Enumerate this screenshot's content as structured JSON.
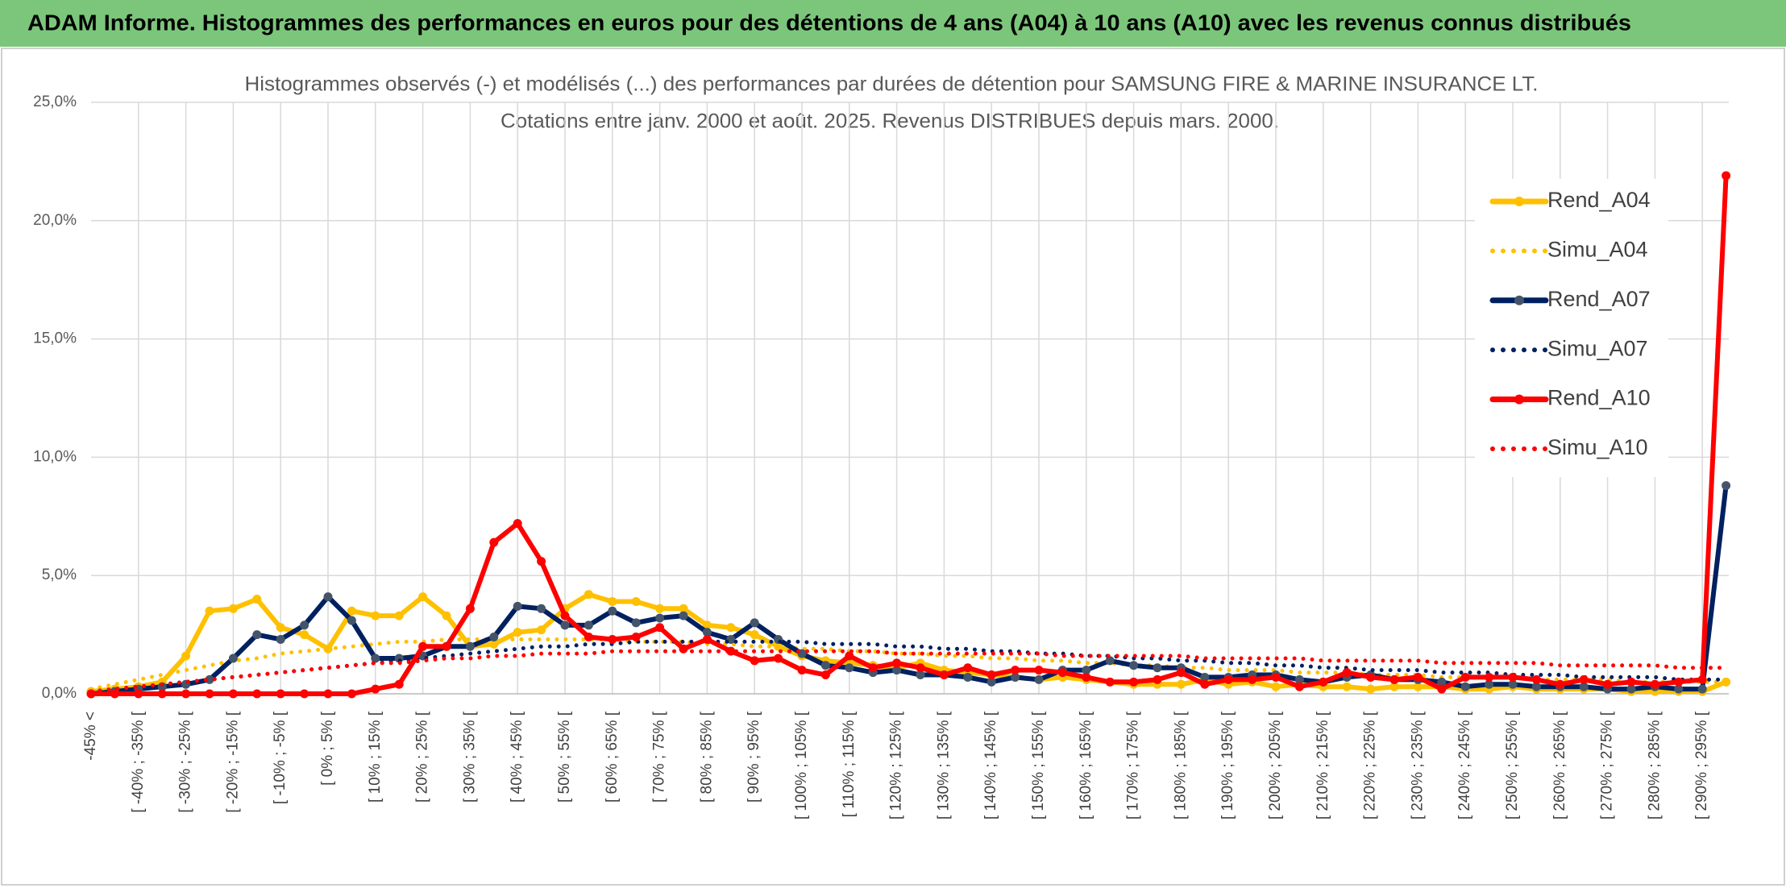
{
  "header": {
    "title": "ADAM Informe. Histogrammes des performances en euros pour des détentions de 4 ans (A04) à 10 ans (A10) avec les revenus connus distribués"
  },
  "chart_data": {
    "type": "line",
    "title": "Histogrammes observés (-) et modélisés (...) des performances par durées de détention pour SAMSUNG FIRE & MARINE INSURANCE LT.",
    "subtitle": "Cotations entre janv. 2000 et août. 2025. Revenus DISTRIBUES depuis mars. 2000.",
    "categories": [
      "-45% <",
      null,
      "[ -40% ; -35% [",
      null,
      "[ -30% ; -25% [",
      null,
      "[ -20% ; -15% [",
      null,
      "[ -10% ; -5% [",
      null,
      "[ 0% ; 5% [",
      null,
      "[ 10% ; 15% [",
      null,
      "[ 20% ; 25% [",
      null,
      "[ 30% ; 35% [",
      null,
      "[ 40% ; 45% [",
      null,
      "[ 50% ; 55% [",
      null,
      "[ 60% ; 65% [",
      null,
      "[ 70% ; 75% [",
      null,
      "[ 80% ; 85% [",
      null,
      "[ 90% ; 95% [",
      null,
      "[ 100% ; 105% [",
      null,
      "[ 110% ; 115% [",
      null,
      "[ 120% ; 125% [",
      null,
      "[ 130% ; 135% [",
      null,
      "[ 140% ; 145% [",
      null,
      "[ 150% ; 155% [",
      null,
      "[ 160% ; 165% [",
      null,
      "[ 170% ; 175% [",
      null,
      "[ 180% ; 185% [",
      null,
      "[ 190% ; 195% [",
      null,
      "[ 200% ; 205% [",
      null,
      "[ 210% ; 215% [",
      null,
      "[ 220% ; 225% [",
      null,
      "[ 230% ; 235% [",
      null,
      "[ 240% ; 245% [",
      null,
      "[ 250% ; 255% [",
      null,
      "[ 260% ; 265% [",
      null,
      "[ 270% ; 275% [",
      null,
      "[ 280% ; 285% [",
      null,
      "[ 290% ; 295% [",
      null
    ],
    "ylim": [
      0,
      25
    ],
    "yticks": [
      {
        "value": 0,
        "label": "0,0%"
      },
      {
        "value": 5,
        "label": "5,0%"
      },
      {
        "value": 10,
        "label": "10,0%"
      },
      {
        "value": 15,
        "label": "15,0%"
      },
      {
        "value": 20,
        "label": "20,0%"
      },
      {
        "value": 25,
        "label": "25,0%"
      }
    ],
    "grid": true,
    "legend": "right",
    "series": [
      {
        "name": "Rend_A04",
        "color": "#ffc000",
        "marker_color": "#ffc000",
        "line_style": "solid",
        "values": [
          0.1,
          0.2,
          0.3,
          0.5,
          1.6,
          3.5,
          3.6,
          4.0,
          2.8,
          2.5,
          1.9,
          3.5,
          3.3,
          3.3,
          4.1,
          3.3,
          2.0,
          2.1,
          2.6,
          2.7,
          3.6,
          4.2,
          3.9,
          3.9,
          3.6,
          3.6,
          2.9,
          2.8,
          2.5,
          2.0,
          1.6,
          1.4,
          1.3,
          1.2,
          1.1,
          1.3,
          1.0,
          0.9,
          0.8,
          0.7,
          0.6,
          0.7,
          0.6,
          0.5,
          0.4,
          0.4,
          0.4,
          0.6,
          0.4,
          0.5,
          0.3,
          0.4,
          0.3,
          0.3,
          0.2,
          0.3,
          0.3,
          0.3,
          0.2,
          0.2,
          0.3,
          0.2,
          0.2,
          0.2,
          0.2,
          0.1,
          0.1,
          0.1,
          0.1,
          0.5
        ]
      },
      {
        "name": "Simu_A04",
        "color": "#ffc000",
        "line_style": "dotted",
        "values": [
          0.2,
          0.4,
          0.6,
          0.8,
          1.0,
          1.2,
          1.4,
          1.5,
          1.7,
          1.8,
          1.9,
          2.0,
          2.1,
          2.2,
          2.2,
          2.3,
          2.3,
          2.3,
          2.3,
          2.3,
          2.3,
          2.3,
          2.3,
          2.2,
          2.2,
          2.2,
          2.1,
          2.1,
          2.0,
          2.0,
          1.9,
          1.9,
          1.8,
          1.8,
          1.7,
          1.7,
          1.6,
          1.6,
          1.5,
          1.5,
          1.4,
          1.4,
          1.3,
          1.3,
          1.2,
          1.2,
          1.1,
          1.1,
          1.0,
          1.0,
          1.0,
          0.9,
          0.9,
          0.9,
          0.8,
          0.8,
          0.8,
          0.7,
          0.7,
          0.7,
          0.7,
          0.6,
          0.6,
          0.6,
          0.6,
          0.5,
          0.5,
          0.5,
          0.5,
          0.5
        ]
      },
      {
        "name": "Rend_A07",
        "color": "#002060",
        "marker_color": "#44546a",
        "line_style": "solid",
        "values": [
          0.0,
          0.1,
          0.2,
          0.3,
          0.4,
          0.6,
          1.5,
          2.5,
          2.3,
          2.9,
          4.1,
          3.1,
          1.5,
          1.5,
          1.6,
          2.0,
          2.0,
          2.4,
          3.7,
          3.6,
          2.9,
          2.9,
          3.5,
          3.0,
          3.2,
          3.3,
          2.6,
          2.3,
          3.0,
          2.3,
          1.7,
          1.2,
          1.1,
          0.9,
          1.0,
          0.8,
          0.8,
          0.7,
          0.5,
          0.7,
          0.6,
          1.0,
          1.0,
          1.4,
          1.2,
          1.1,
          1.1,
          0.7,
          0.7,
          0.8,
          0.8,
          0.6,
          0.5,
          0.7,
          0.8,
          0.6,
          0.6,
          0.5,
          0.3,
          0.4,
          0.4,
          0.3,
          0.3,
          0.3,
          0.2,
          0.2,
          0.3,
          0.2,
          0.2,
          8.8
        ]
      },
      {
        "name": "Simu_A07",
        "color": "#002060",
        "line_style": "dotted",
        "values": [
          0.1,
          0.2,
          0.3,
          0.4,
          0.5,
          0.6,
          0.7,
          0.8,
          0.9,
          1.0,
          1.1,
          1.2,
          1.3,
          1.4,
          1.5,
          1.6,
          1.7,
          1.8,
          1.9,
          2.0,
          2.0,
          2.1,
          2.1,
          2.2,
          2.2,
          2.2,
          2.2,
          2.2,
          2.2,
          2.2,
          2.2,
          2.1,
          2.1,
          2.1,
          2.0,
          2.0,
          1.9,
          1.9,
          1.8,
          1.8,
          1.7,
          1.7,
          1.6,
          1.6,
          1.5,
          1.5,
          1.4,
          1.4,
          1.3,
          1.3,
          1.2,
          1.2,
          1.1,
          1.1,
          1.0,
          1.0,
          1.0,
          0.9,
          0.9,
          0.9,
          0.8,
          0.8,
          0.8,
          0.7,
          0.7,
          0.7,
          0.7,
          0.6,
          0.6,
          0.6
        ]
      },
      {
        "name": "Rend_A10",
        "color": "#ff0000",
        "marker_color": "#ff0000",
        "line_style": "solid",
        "values": [
          0.0,
          0.0,
          0.0,
          0.0,
          0.0,
          0.0,
          0.0,
          0.0,
          0.0,
          0.0,
          0.0,
          0.0,
          0.2,
          0.4,
          2.0,
          2.0,
          3.6,
          6.4,
          7.2,
          5.6,
          3.3,
          2.4,
          2.3,
          2.4,
          2.8,
          1.9,
          2.3,
          1.8,
          1.4,
          1.5,
          1.0,
          0.8,
          1.6,
          1.1,
          1.3,
          1.1,
          0.8,
          1.1,
          0.8,
          1.0,
          1.0,
          0.9,
          0.7,
          0.5,
          0.5,
          0.6,
          0.9,
          0.4,
          0.6,
          0.6,
          0.7,
          0.3,
          0.5,
          0.9,
          0.7,
          0.6,
          0.7,
          0.2,
          0.7,
          0.7,
          0.7,
          0.6,
          0.4,
          0.6,
          0.4,
          0.5,
          0.4,
          0.5,
          0.6,
          21.9
        ]
      },
      {
        "name": "Simu_A10",
        "color": "#ff0000",
        "line_style": "dotted",
        "values": [
          0.1,
          0.2,
          0.3,
          0.4,
          0.5,
          0.6,
          0.7,
          0.8,
          0.9,
          1.0,
          1.1,
          1.2,
          1.3,
          1.3,
          1.4,
          1.5,
          1.5,
          1.6,
          1.6,
          1.7,
          1.7,
          1.7,
          1.8,
          1.8,
          1.8,
          1.8,
          1.8,
          1.8,
          1.8,
          1.8,
          1.8,
          1.8,
          1.8,
          1.8,
          1.7,
          1.7,
          1.7,
          1.7,
          1.7,
          1.7,
          1.7,
          1.6,
          1.6,
          1.6,
          1.6,
          1.6,
          1.6,
          1.5,
          1.5,
          1.5,
          1.5,
          1.5,
          1.4,
          1.4,
          1.4,
          1.4,
          1.4,
          1.3,
          1.3,
          1.3,
          1.3,
          1.3,
          1.2,
          1.2,
          1.2,
          1.2,
          1.2,
          1.1,
          1.1,
          1.1
        ]
      }
    ]
  }
}
